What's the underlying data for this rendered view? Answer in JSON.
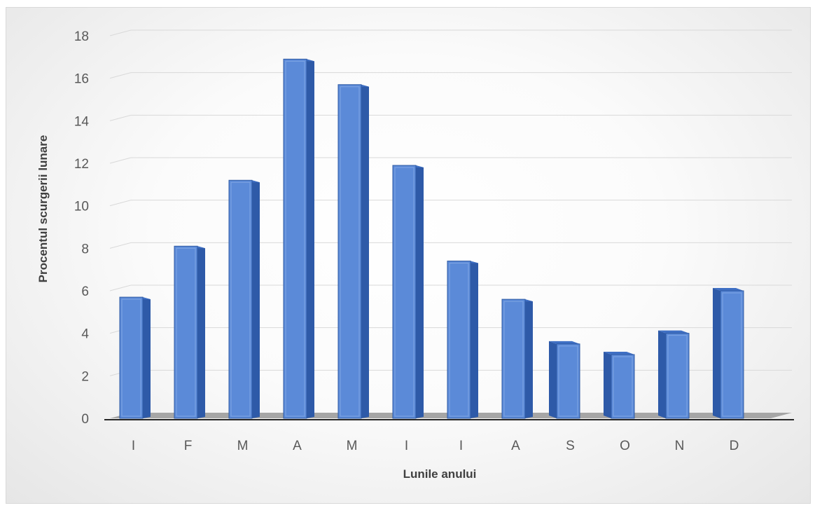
{
  "chart_data": {
    "type": "bar",
    "title": "",
    "xlabel": "Lunile anului",
    "ylabel": "Procentul scurgerii lunare",
    "categories": [
      "I",
      "F",
      "M",
      "A",
      "M",
      "I",
      "I",
      "A",
      "S",
      "O",
      "N",
      "D"
    ],
    "values": [
      5.7,
      8.1,
      11.2,
      16.9,
      15.7,
      11.9,
      7.4,
      5.6,
      3.5,
      3.0,
      4.0,
      6.0
    ],
    "ylim": [
      0,
      18
    ],
    "yticks": [
      "0",
      "2",
      "4",
      "6",
      "8",
      "10",
      "12",
      "14",
      "16",
      "18"
    ],
    "grid": true,
    "legend": "none",
    "style": "3d-column",
    "colors": {
      "bar_front": "#5b8ad8",
      "bar_top": "#3e6fc4",
      "bar_side": "#2e5aa8",
      "gridline": "#d9d9d9",
      "floor": "#a6a6a6",
      "axis": "#262626"
    }
  }
}
